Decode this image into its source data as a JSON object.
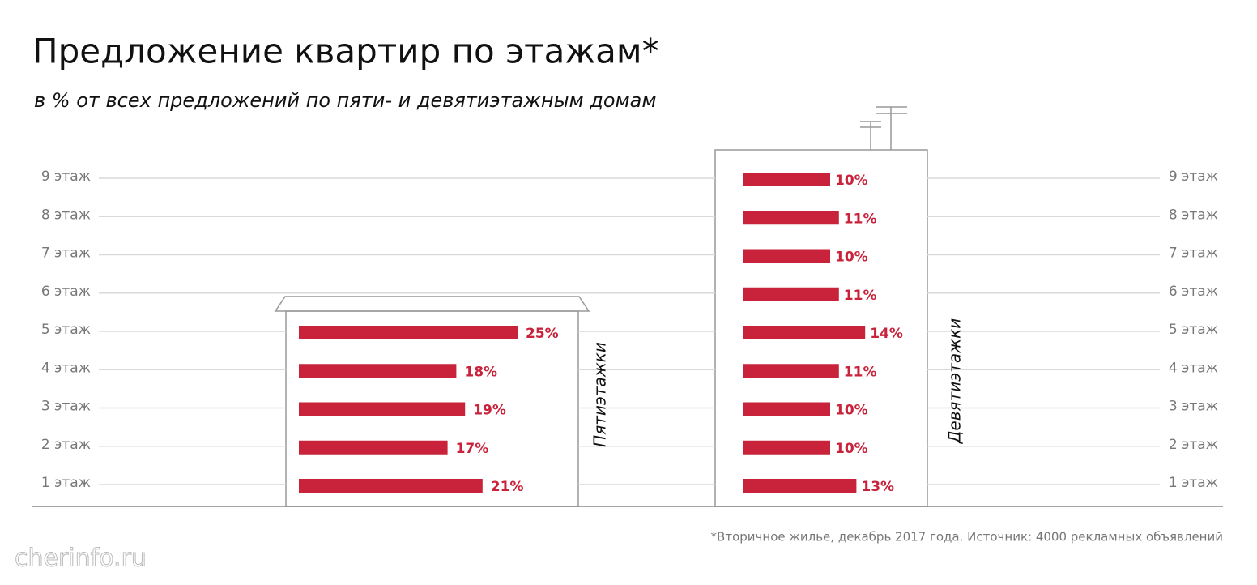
{
  "chart_data": {
    "type": "hbar",
    "title": "Предложение квартир по этажам*",
    "subtitle": "в % от всех предложений по пяти- и девятиэтажным домам",
    "categories": [
      "1 этаж",
      "2 этаж",
      "3 этаж",
      "4 этаж",
      "5 этаж",
      "6 этаж",
      "7 этаж",
      "8 этаж",
      "9 этаж"
    ],
    "series": [
      {
        "name": "Пятиэтажки",
        "color": "#c8233a",
        "values": [
          21,
          17,
          19,
          18,
          25,
          null,
          null,
          null,
          null
        ],
        "value_labels": [
          "21%",
          "17%",
          "19%",
          "18%",
          "25%",
          null,
          null,
          null,
          null
        ]
      },
      {
        "name": "Девятиэтажки",
        "color": "#c8233a",
        "values": [
          13,
          10,
          10,
          11,
          14,
          11,
          10,
          11,
          10
        ],
        "value_labels": [
          "13%",
          "10%",
          "10%",
          "11%",
          "14%",
          "11%",
          "10%",
          "11%",
          "10%"
        ]
      }
    ],
    "footnote": "*Вторичное жилье, декабрь 2017 года.  Источник: 4000 рекламных объявлений",
    "watermark": "cherinfo.ru",
    "grid": true
  }
}
